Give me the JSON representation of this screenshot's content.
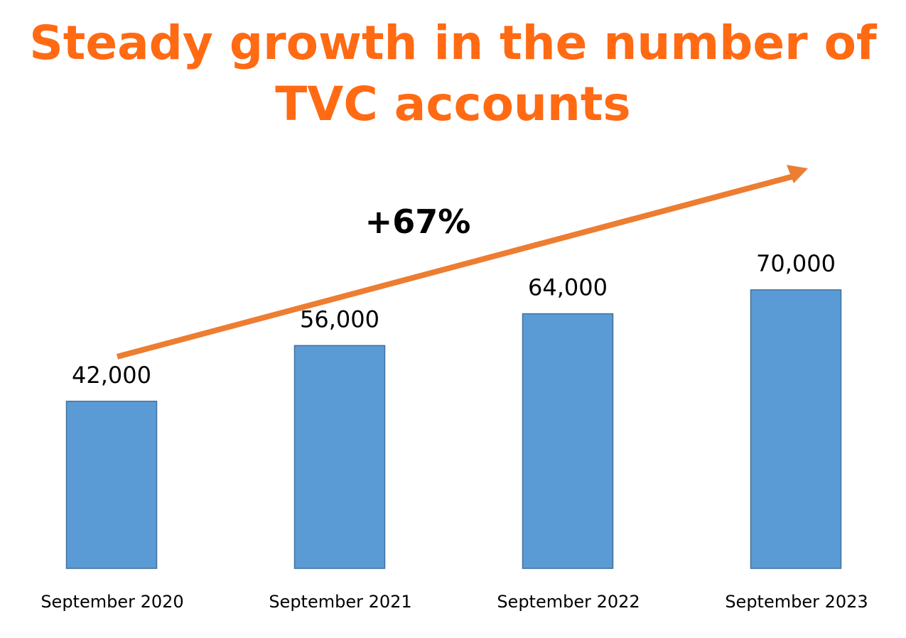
{
  "chart_data": {
    "type": "bar",
    "title": "Steady growth in the number of TVC accounts",
    "title_lines": [
      "Steady growth in the number of",
      "TVC accounts"
    ],
    "categories": [
      "September 2020",
      "September 2021",
      "September 2022",
      "September 2023"
    ],
    "values": [
      42000,
      56000,
      64000,
      70000
    ],
    "value_labels": [
      "42,000",
      "56,000",
      "64,000",
      "70,000"
    ],
    "ylim": [
      0,
      70000
    ],
    "grid": false,
    "legend": "none",
    "annotation": {
      "text": "+67%",
      "type": "arrow-up-right"
    },
    "colors": {
      "bar_fill": "#5B9BD5",
      "bar_stroke": "#41719C",
      "title": "#FF6A13",
      "arrow": "#ED7D31"
    }
  }
}
